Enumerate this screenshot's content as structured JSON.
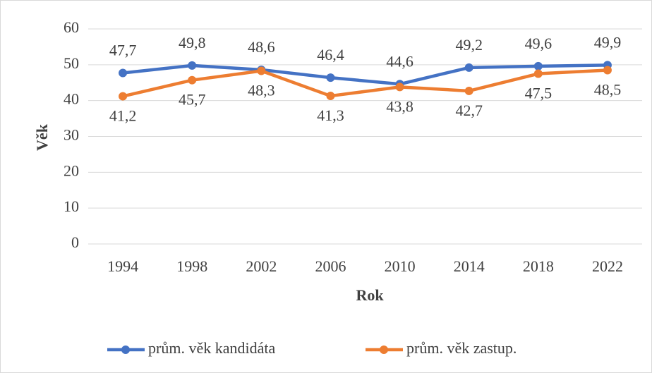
{
  "chart_data": {
    "type": "line",
    "y_label": "Věk",
    "x_label": "Rok",
    "categories": [
      "1994",
      "1998",
      "2002",
      "2006",
      "2010",
      "2014",
      "2018",
      "2022"
    ],
    "series": [
      {
        "name": "prům. věk kandidáta",
        "color": "#4472c4",
        "values": [
          47.7,
          49.8,
          48.6,
          46.4,
          44.6,
          49.2,
          49.6,
          49.9
        ],
        "value_labels": [
          "47,7",
          "49,8",
          "48,6",
          "46,4",
          "44,6",
          "49,2",
          "49,6",
          "49,9"
        ]
      },
      {
        "name": "prům. věk zastup.",
        "color": "#ed7d31",
        "values": [
          41.2,
          45.7,
          48.3,
          41.3,
          43.8,
          42.7,
          47.5,
          48.5
        ],
        "value_labels": [
          "41,2",
          "45,7",
          "48,3",
          "41,3",
          "43,8",
          "42,7",
          "47,5",
          "48,5"
        ]
      }
    ],
    "ylim": [
      0,
      60
    ],
    "yticks": [
      0,
      10,
      20,
      30,
      40,
      50,
      60
    ],
    "grid": true,
    "legend": "bottom"
  }
}
